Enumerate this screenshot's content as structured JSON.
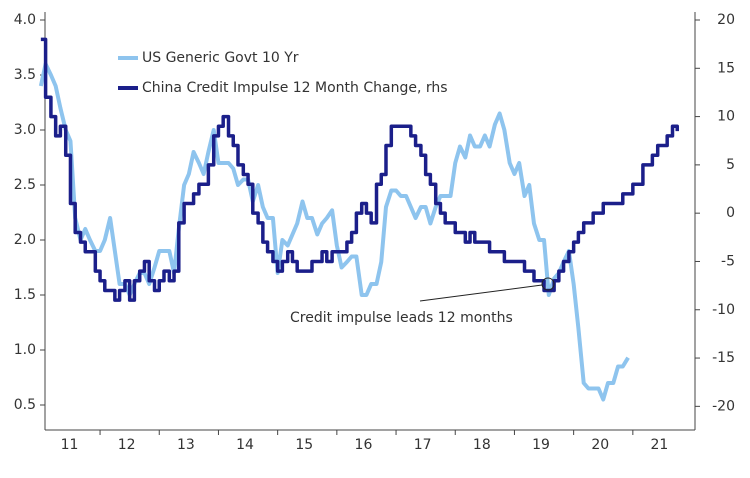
{
  "chart_data": {
    "type": "line",
    "annotation": "Credit impulse leads 12 months",
    "x": [
      2011.0,
      2011.08,
      2011.17,
      2011.25,
      2011.33,
      2011.42,
      2011.5,
      2011.58,
      2011.67,
      2011.75,
      2011.83,
      2011.92,
      2012.0,
      2012.08,
      2012.17,
      2012.25,
      2012.33,
      2012.42,
      2012.5,
      2012.58,
      2012.67,
      2012.75,
      2012.83,
      2012.92,
      2013.0,
      2013.08,
      2013.17,
      2013.25,
      2013.33,
      2013.42,
      2013.5,
      2013.58,
      2013.67,
      2013.75,
      2013.83,
      2013.92,
      2014.0,
      2014.08,
      2014.17,
      2014.25,
      2014.33,
      2014.42,
      2014.5,
      2014.58,
      2014.67,
      2014.75,
      2014.83,
      2014.92,
      2015.0,
      2015.08,
      2015.17,
      2015.25,
      2015.33,
      2015.42,
      2015.5,
      2015.58,
      2015.67,
      2015.75,
      2015.83,
      2015.92,
      2016.0,
      2016.08,
      2016.17,
      2016.25,
      2016.33,
      2016.42,
      2016.5,
      2016.58,
      2016.67,
      2016.75,
      2016.83,
      2016.92,
      2017.0,
      2017.08,
      2017.17,
      2017.25,
      2017.33,
      2017.42,
      2017.5,
      2017.58,
      2017.67,
      2017.75,
      2017.83,
      2017.92,
      2018.0,
      2018.08,
      2018.17,
      2018.25,
      2018.33,
      2018.42,
      2018.5,
      2018.58,
      2018.67,
      2018.75,
      2018.83,
      2018.92,
      2019.0,
      2019.08,
      2019.17,
      2019.25,
      2019.33,
      2019.42,
      2019.5,
      2019.58,
      2019.67,
      2019.75,
      2019.83,
      2019.92,
      2020.0,
      2020.08,
      2020.17,
      2020.25,
      2020.33,
      2020.42,
      2020.5,
      2020.58,
      2020.67,
      2020.75,
      2020.83,
      2020.92,
      2021.0,
      2021.08,
      2021.17,
      2021.25,
      2021.33,
      2021.42,
      2021.5,
      2021.58,
      2021.67,
      2021.75
    ],
    "series": [
      {
        "name": "US Generic Govt 10 Yr",
        "color": "#8ec4ee",
        "values": [
          3.4,
          3.6,
          3.5,
          3.4,
          3.2,
          3.0,
          2.9,
          2.2,
          2.0,
          2.1,
          2.0,
          1.9,
          1.9,
          2.0,
          2.2,
          1.9,
          1.6,
          1.6,
          1.5,
          1.6,
          1.7,
          1.7,
          1.6,
          1.75,
          1.9,
          1.9,
          1.9,
          1.7,
          2.1,
          2.5,
          2.6,
          2.8,
          2.7,
          2.6,
          2.8,
          3.0,
          2.7,
          2.7,
          2.7,
          2.65,
          2.5,
          2.55,
          2.55,
          2.35,
          2.5,
          2.3,
          2.2,
          2.2,
          1.7,
          2.0,
          1.95,
          2.05,
          2.15,
          2.35,
          2.2,
          2.2,
          2.05,
          2.15,
          2.2,
          2.27,
          1.95,
          1.75,
          1.8,
          1.85,
          1.85,
          1.5,
          1.5,
          1.6,
          1.6,
          1.8,
          2.3,
          2.45,
          2.45,
          2.4,
          2.4,
          2.3,
          2.2,
          2.3,
          2.3,
          2.15,
          2.3,
          2.4,
          2.4,
          2.4,
          2.7,
          2.85,
          2.75,
          2.95,
          2.85,
          2.85,
          2.95,
          2.85,
          3.05,
          3.15,
          3.0,
          2.7,
          2.6,
          2.7,
          2.4,
          2.5,
          2.15,
          2.0,
          2.0,
          1.5,
          1.65,
          1.7,
          1.8,
          1.9,
          1.6,
          1.2,
          0.7,
          0.65,
          0.65,
          0.65,
          0.55,
          0.7,
          0.7,
          0.85,
          0.85,
          0.93,
          null,
          null,
          null,
          null,
          null,
          null,
          null,
          null,
          null,
          null
        ]
      },
      {
        "name": "China Credit Impulse 12 Month Change, rhs",
        "color": "#1b1f8a",
        "axis": "y2",
        "values": [
          18,
          12,
          10,
          8,
          9,
          6,
          1,
          -2,
          -3,
          -4,
          -4,
          -6,
          -7,
          -8,
          -8,
          -9,
          -8,
          -7,
          -9,
          -7,
          -6,
          -5,
          -7,
          -8,
          -7,
          -6,
          -7,
          -6,
          -1,
          1,
          1,
          2,
          3,
          3,
          5,
          8,
          9,
          10,
          8,
          7,
          5,
          4,
          3,
          0,
          -1,
          -3,
          -4,
          -5,
          -6,
          -5,
          -4,
          -5,
          -6,
          -6,
          -6,
          -5,
          -5,
          -4,
          -5,
          -4,
          -4,
          -4,
          -3,
          -2,
          0,
          1,
          0,
          -1,
          3,
          4,
          7,
          9,
          9,
          9,
          9,
          8,
          7,
          6,
          4,
          3,
          1,
          0,
          -1,
          -1,
          -2,
          -2,
          -3,
          -2,
          -3,
          -3,
          -3,
          -4,
          -4,
          -4,
          -5,
          -5,
          -5,
          -5,
          -6,
          -6,
          -7,
          -7,
          -8,
          -8,
          -7,
          -6,
          -5,
          -4,
          -3,
          -2,
          -1,
          -1,
          0,
          0,
          1,
          1,
          1,
          1,
          2,
          2,
          3,
          3,
          5,
          5,
          6,
          7,
          7,
          8,
          9,
          8.5
        ]
      }
    ],
    "xlim": [
      2011.07,
      2022.05
    ],
    "xticks": [
      {
        "value": 2011,
        "label": "11"
      },
      {
        "value": 2012,
        "label": "12"
      },
      {
        "value": 2013,
        "label": "13"
      },
      {
        "value": 2014,
        "label": "14"
      },
      {
        "value": 2015,
        "label": "15"
      },
      {
        "value": 2016,
        "label": "16"
      },
      {
        "value": 2017,
        "label": "17"
      },
      {
        "value": 2018,
        "label": "18"
      },
      {
        "value": 2019,
        "label": "19"
      },
      {
        "value": 2020,
        "label": "20"
      },
      {
        "value": 2021,
        "label": "21"
      }
    ],
    "ylim": [
      0.4,
      4.0
    ],
    "yticks": [
      0.5,
      {
        "value": 1,
        "label": "1.0"
      },
      1.5,
      {
        "value": 2,
        "label": "2.0"
      },
      2.5,
      {
        "value": 3,
        "label": "3.0"
      },
      3.5,
      {
        "value": 4,
        "label": "4.0"
      }
    ],
    "y2lim": [
      -21,
      20
    ],
    "y2ticks": [
      -20,
      -15,
      -10,
      -5,
      0,
      5,
      10,
      15,
      20
    ],
    "step_series": [
      1
    ]
  }
}
